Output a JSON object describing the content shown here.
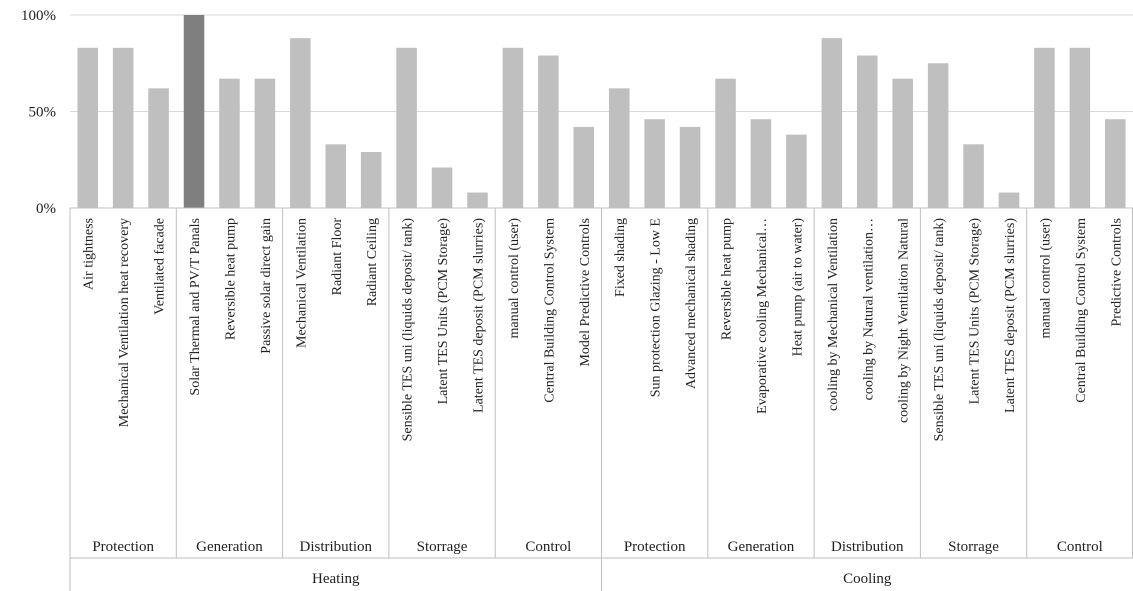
{
  "chart_data": {
    "type": "bar",
    "title": "",
    "xlabel": "",
    "ylabel": "",
    "ylim": [
      0,
      100
    ],
    "y_ticks": [
      "0%",
      "50%",
      "100%"
    ],
    "grid": "horizontal",
    "colors": {
      "default": "#bfbfbf",
      "highlight": "#7f7f7f",
      "grid": "#d9d9d9",
      "axis": "#bfbfbf"
    },
    "categories": [
      "Air tightness",
      "Mechanical Ventilation heat recovery",
      "Ventilated facade",
      "Solar Thermal and PV/T Panals",
      "Reversible heat pump",
      "Passive solar direct gain",
      "Mechanical Ventilation",
      "Radiant Floor",
      "Radiant Ceiling",
      "Sensible TES uni (liquids deposit/ tank)",
      "Latent TES Units  (PCM Storage)",
      "Latent TES deposit (PCM slurries)",
      "manual control (user)",
      "Central Building Control System",
      "Model Predictive Controls",
      "Fixed shading",
      "Sun protection Glazing - Low E",
      "Advanced mechanical shading",
      "Reversible heat pump",
      "Evaporative cooling Mechanical…",
      "Heat pump (air to water)",
      "cooling by Mechanical Ventilation",
      "cooling by Natural ventilation…",
      "cooling by Night Ventilation Natural",
      "Sensible TES uni (liquids deposit/ tank)",
      "Latent TES Units  (PCM Storage)",
      "Latent TES deposit (PCM slurries)",
      "manual control (user)",
      "Central Building Control System",
      "Predictive Controls"
    ],
    "values": [
      83,
      83,
      62,
      100,
      67,
      67,
      88,
      33,
      29,
      83,
      21,
      8,
      83,
      79,
      42,
      62,
      46,
      42,
      67,
      46,
      38,
      88,
      79,
      67,
      75,
      33,
      8,
      83,
      83,
      46
    ],
    "highlight_index": 3,
    "groups": [
      {
        "label": "Protection",
        "start": 0,
        "count": 3
      },
      {
        "label": "Generation",
        "start": 3,
        "count": 3
      },
      {
        "label": "Distribution",
        "start": 6,
        "count": 3
      },
      {
        "label": "Storrage",
        "start": 9,
        "count": 3
      },
      {
        "label": "Control",
        "start": 12,
        "count": 3
      },
      {
        "label": "Protection",
        "start": 15,
        "count": 3
      },
      {
        "label": "Generation",
        "start": 18,
        "count": 3
      },
      {
        "label": "Distribution",
        "start": 21,
        "count": 3
      },
      {
        "label": "Storrage",
        "start": 24,
        "count": 3
      },
      {
        "label": "Control",
        "start": 27,
        "count": 3
      }
    ],
    "sections": [
      {
        "label": "Heating",
        "start": 0,
        "count": 15
      },
      {
        "label": "Cooling",
        "start": 15,
        "count": 15
      }
    ]
  }
}
